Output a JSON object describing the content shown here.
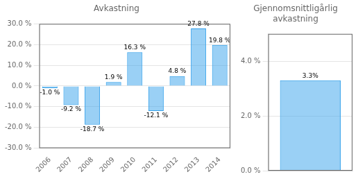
{
  "chart_data": [
    {
      "type": "bar",
      "title": "Avkastning",
      "categories": [
        "2006",
        "2007",
        "2008",
        "2009",
        "2010",
        "2011",
        "2012",
        "2013",
        "2014"
      ],
      "values": [
        -1.0,
        -9.2,
        -18.7,
        1.9,
        16.3,
        -12.1,
        4.8,
        27.8,
        19.8
      ],
      "value_labels": [
        "-1.0 %",
        "-9.2 %",
        "-18.7 %",
        "1.9 %",
        "16.3 %",
        "-12.1 %",
        "4.8 %",
        "27.8 %",
        "19.8 %"
      ],
      "data_labels": true,
      "ylim": [
        -30,
        30
      ],
      "yticks": [
        {
          "value": -30,
          "label": "-30.0 %"
        },
        {
          "value": -20,
          "label": "-20.0 %"
        },
        {
          "value": -10,
          "label": "-10.0 %"
        },
        {
          "value": 0,
          "label": "0.0 %"
        },
        {
          "value": 10,
          "label": "10.0 %"
        },
        {
          "value": 20,
          "label": "20.0 %"
        },
        {
          "value": 30,
          "label": "30.0 %"
        }
      ],
      "grid": true
    },
    {
      "type": "bar",
      "title": "Gjennomsnittligårlig\navkastning",
      "categories": [
        null
      ],
      "values": [
        3.3
      ],
      "value_labels": [
        "3.3%"
      ],
      "data_labels": true,
      "ylim": [
        0.0,
        5.0
      ],
      "yticks": [
        {
          "value": 0.0,
          "label": "0.0 %"
        },
        {
          "value": 2.0,
          "label": "2.0 %"
        },
        {
          "value": 4.0,
          "label": "4.0 %"
        }
      ],
      "grid": true,
      "tick_labels": "y"
    }
  ]
}
